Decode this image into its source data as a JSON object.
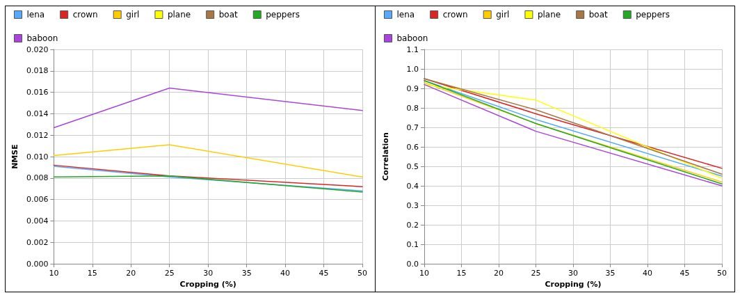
{
  "chart_data": [
    {
      "type": "line",
      "xlabel": "Cropping (%)",
      "ylabel": "NMSE",
      "x": [
        10,
        25,
        50
      ],
      "series": [
        {
          "name": "lena",
          "color": "#55aaff",
          "values": [
            0.0091,
            0.0081,
            0.0068
          ]
        },
        {
          "name": "crown",
          "color": "#dd2222",
          "values": [
            0.0092,
            0.0082,
            0.0072
          ]
        },
        {
          "name": "girl",
          "color": "#ffcc00",
          "values": [
            0.0101,
            0.0111,
            0.0081
          ]
        },
        {
          "name": "plane",
          "color": "#ffff00",
          "values": [
            null,
            null,
            null
          ]
        },
        {
          "name": "boat",
          "color": "#aa7744",
          "values": [
            null,
            null,
            null
          ]
        },
        {
          "name": "peppers",
          "color": "#22aa22",
          "values": [
            0.0081,
            0.0082,
            0.0067
          ]
        },
        {
          "name": "baboon",
          "color": "#aa44dd",
          "values": [
            0.0127,
            0.0164,
            0.0143
          ]
        }
      ],
      "xlim": [
        10,
        50
      ],
      "xticks": [
        10,
        15,
        20,
        25,
        30,
        35,
        40,
        45,
        50
      ],
      "ylim": [
        0,
        0.02
      ],
      "yticks": [
        {
          "value": 0,
          "label": "0.000"
        },
        {
          "value": 0.002,
          "label": "0.002"
        },
        {
          "value": 0.004,
          "label": "0.004"
        },
        {
          "value": 0.006,
          "label": "0.006"
        },
        {
          "value": 0.008,
          "label": "0.008"
        },
        {
          "value": 0.01,
          "label": "0.010"
        },
        {
          "value": 0.012,
          "label": "0.012"
        },
        {
          "value": 0.014,
          "label": "0.014"
        },
        {
          "value": 0.016,
          "label": "0.016"
        },
        {
          "value": 0.018,
          "label": "0.018"
        },
        {
          "value": 0.02,
          "label": "0.020"
        }
      ],
      "grid": true,
      "legend": "top left",
      "marker": "none",
      "line_style": "solid"
    },
    {
      "type": "line",
      "xlabel": "Cropping (%)",
      "ylabel": "Correlation",
      "x": [
        10,
        25,
        50
      ],
      "series": [
        {
          "name": "lena",
          "color": "#55aaff",
          "values": [
            0.94,
            0.74,
            0.45
          ]
        },
        {
          "name": "crown",
          "color": "#dd2222",
          "values": [
            0.95,
            0.77,
            0.49
          ]
        },
        {
          "name": "girl",
          "color": "#ffcc00",
          "values": [
            0.93,
            0.72,
            0.42
          ]
        },
        {
          "name": "plane",
          "color": "#ffff00",
          "values": [
            0.92,
            0.84,
            0.44
          ]
        },
        {
          "name": "boat",
          "color": "#aa7744",
          "values": [
            0.95,
            0.79,
            0.46
          ]
        },
        {
          "name": "peppers",
          "color": "#22aa22",
          "values": [
            0.94,
            0.72,
            0.41
          ]
        },
        {
          "name": "baboon",
          "color": "#aa44dd",
          "values": [
            0.92,
            0.68,
            0.4
          ]
        }
      ],
      "xlim": [
        10,
        50
      ],
      "xticks": [
        10,
        15,
        20,
        25,
        30,
        35,
        40,
        45,
        50
      ],
      "ylim": [
        0,
        1.1
      ],
      "yticks": [
        {
          "value": 0,
          "label": "0.0"
        },
        {
          "value": 0.1,
          "label": "0.1"
        },
        {
          "value": 0.2,
          "label": "0.2"
        },
        {
          "value": 0.3,
          "label": "0.3"
        },
        {
          "value": 0.4,
          "label": "0.4"
        },
        {
          "value": 0.5,
          "label": "0.5"
        },
        {
          "value": 0.6,
          "label": "0.6"
        },
        {
          "value": 0.7,
          "label": "0.7"
        },
        {
          "value": 0.8,
          "label": "0.8"
        },
        {
          "value": 0.9,
          "label": "0.9"
        },
        {
          "value": 1,
          "label": "1.0"
        },
        {
          "value": 1.1,
          "label": "1.1"
        }
      ],
      "grid": true,
      "legend": "top left",
      "marker": "none",
      "line_style": "solid"
    }
  ]
}
